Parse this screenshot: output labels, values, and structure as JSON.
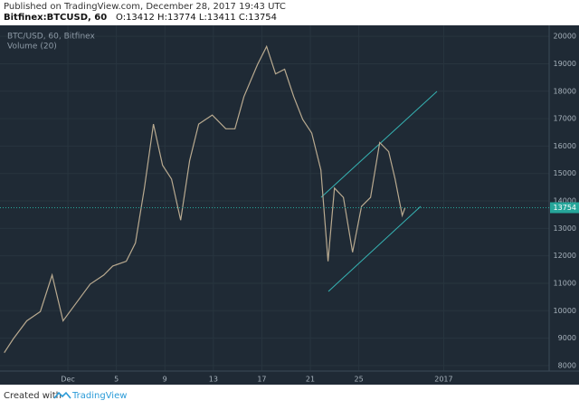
{
  "chart_data": {
    "type": "line",
    "published": "Published on TradingView.com, December 28, 2017 19:43 UTC",
    "symbol": "Bitfinex:BTCUSD, 60",
    "ohlc": "O:13412 H:13774 L:13411 C:13754",
    "title": "BTC/USD, 60, Bitfinex",
    "study": "Volume (20)",
    "created_with": "Created with",
    "brand": "TradingView",
    "x": [
      -4.25,
      -3.51,
      -2.39,
      -1.27,
      -0.3,
      0.6,
      1.72,
      2.84,
      3.96,
      4.7,
      5.82,
      6.57,
      7.31,
      8.06,
      8.81,
      9.55,
      10.3,
      11.04,
      11.79,
      12.91,
      14.03,
      14.78,
      15.52,
      16.64,
      17.39,
      18.13,
      18.88,
      19.63,
      20.37,
      21.12,
      21.87,
      22.46,
      22.99,
      23.73,
      24.48,
      25.22,
      25.97,
      26.72,
      27.46,
      27.99,
      28.58,
      28.81
    ],
    "series": [
      {
        "name": "BTC/USD",
        "color": "#b9aa90",
        "values": [
          8470,
          8970,
          9630,
          9970,
          11300,
          9630,
          10300,
          10970,
          11300,
          11630,
          11800,
          12470,
          14470,
          16800,
          15300,
          14800,
          13300,
          15470,
          16800,
          17130,
          16630,
          16630,
          17800,
          18970,
          19630,
          18630,
          18800,
          17800,
          16970,
          16470,
          15130,
          11800,
          14470,
          14130,
          12130,
          13800,
          14130,
          16130,
          15800,
          14800,
          13470,
          13754
        ]
      }
    ],
    "last_price": 13754,
    "last_price_color": "#26a69a",
    "xlim": [
      -4.6,
      40.7
    ],
    "xticks": [
      {
        "value": 1,
        "label": "Dec"
      },
      5,
      9,
      13,
      17,
      21,
      25,
      {
        "value": 32,
        "label": "2017"
      }
    ],
    "ylim": [
      7800,
      20400
    ],
    "yticks": [
      8000,
      9000,
      10000,
      11000,
      12000,
      13000,
      14000,
      15000,
      16000,
      17000,
      18000,
      19000,
      20000
    ],
    "grid": true
  }
}
